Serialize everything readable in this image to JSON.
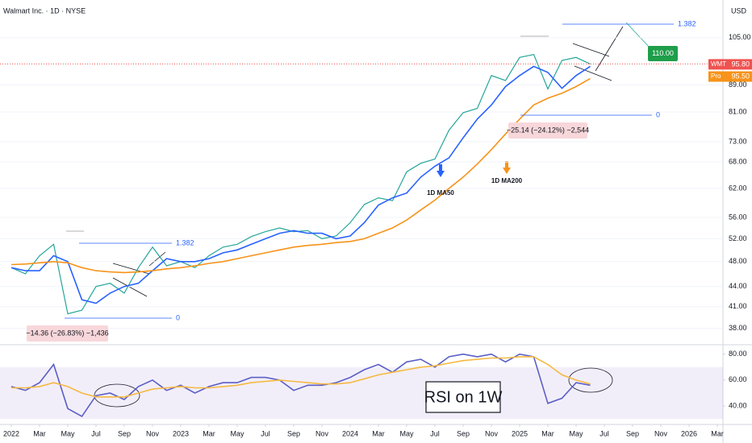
{
  "chart_data": [
    {
      "type": "line",
      "title": "Walmart Inc. · 1D · NYSE",
      "y_label": "USD",
      "log": true,
      "x": [
        0,
        1,
        2,
        3,
        4,
        5,
        6,
        7,
        8,
        9,
        10,
        11,
        12,
        13,
        14,
        15,
        16,
        17,
        18,
        19,
        20,
        21,
        22,
        23,
        24,
        25,
        26,
        27,
        28,
        29,
        30,
        31,
        32,
        33,
        34,
        35,
        36,
        37,
        38,
        39,
        40,
        41
      ],
      "xlim": [
        -0.8,
        50.4
      ],
      "ylim": [
        36.2,
        119.8
      ],
      "yticks": [
        {
          "value": 38,
          "label": "38.00"
        },
        {
          "value": 41,
          "label": "41.00"
        },
        {
          "value": 44,
          "label": "44.00"
        },
        {
          "value": 48,
          "label": "48.00"
        },
        {
          "value": 52,
          "label": "52.00"
        },
        {
          "value": 56,
          "label": "56.00"
        },
        {
          "value": 62,
          "label": "62.00"
        },
        {
          "value": 68,
          "label": "68.00"
        },
        {
          "value": 73,
          "label": "73.00"
        },
        {
          "value": 81,
          "label": "81.00"
        },
        {
          "value": 89,
          "label": "89.00"
        },
        {
          "value": 105,
          "label": "105.00"
        }
      ],
      "grid": true,
      "series": [
        {
          "color": "#26a69a",
          "values": [
            47,
            46,
            49,
            51,
            40,
            40.5,
            44,
            44.5,
            43,
            47,
            50.5,
            47.3,
            48,
            47,
            49,
            50.5,
            51,
            52.4,
            53.3,
            54,
            53.3,
            53.5,
            52,
            52.5,
            55,
            58.6,
            60,
            59.4,
            65.7,
            67.7,
            68.7,
            76,
            80.8,
            82,
            92,
            90.4,
            98,
            99,
            87.8,
            97,
            98,
            95.8
          ]
        },
        {
          "color": "#2962ff",
          "values": [
            47,
            46.5,
            46.5,
            49,
            48,
            42,
            41.5,
            43,
            44,
            44.5,
            46.5,
            48.5,
            48,
            48,
            48.5,
            49.5,
            50,
            51,
            52,
            53,
            53.5,
            53,
            53,
            52,
            52.5,
            55,
            58.5,
            60,
            61,
            64.5,
            67,
            69,
            74,
            79,
            83,
            88.5,
            92,
            95,
            93,
            88,
            92,
            95
          ]
        },
        {
          "color": "#f7931a",
          "values": [
            47.5,
            47.6,
            47.8,
            48,
            47.8,
            47,
            46.5,
            46.3,
            46.2,
            46.3,
            46.5,
            46.8,
            47,
            47.3,
            47.7,
            48,
            48.5,
            49,
            49.5,
            50,
            50.5,
            50.8,
            51,
            51.3,
            51.5,
            52,
            53,
            54,
            55.5,
            57.5,
            59.5,
            62,
            64.5,
            67.5,
            71,
            75,
            79,
            83,
            85,
            86.5,
            88.5,
            91
          ]
        }
      ],
      "last_price": {
        "symbol": "WMT",
        "value": 95.8,
        "label": "95.80",
        "color": "#ef5350"
      },
      "pro_price": {
        "symbol": "Pro",
        "value": 95.5,
        "label": "95.50",
        "color": "#f7931a"
      },
      "annotations": [
        "1.382",
        "0",
        "1.382",
        "0",
        "110.00",
        "−14.36 (−26.83%) −1,436",
        "−25.14 (−24.12%) −2,544",
        "1D MA50",
        "1D MA200"
      ]
    },
    {
      "type": "line",
      "x": [
        0,
        1,
        2,
        3,
        4,
        5,
        6,
        7,
        8,
        9,
        10,
        11,
        12,
        13,
        14,
        15,
        16,
        17,
        18,
        19,
        20,
        21,
        22,
        23,
        24,
        25,
        26,
        27,
        28,
        29,
        30,
        31,
        32,
        33,
        34,
        35,
        36,
        37,
        38,
        39,
        40,
        41
      ],
      "xlim": [
        -0.8,
        50.4
      ],
      "ylim": [
        27,
        86
      ],
      "band": [
        30,
        70
      ],
      "yticks": [
        {
          "value": 40,
          "label": "40.00"
        },
        {
          "value": 60,
          "label": "60.00"
        },
        {
          "value": 80,
          "label": "80.00"
        }
      ],
      "xticks": [
        {
          "value": 0,
          "label": "2022"
        },
        {
          "value": 2,
          "label": "Mar"
        },
        {
          "value": 4,
          "label": "May"
        },
        {
          "value": 6,
          "label": "Jul"
        },
        {
          "value": 8,
          "label": "Sep"
        },
        {
          "value": 10,
          "label": "Nov"
        },
        {
          "value": 12,
          "label": "2023"
        },
        {
          "value": 14,
          "label": "Mar"
        },
        {
          "value": 16,
          "label": "May"
        },
        {
          "value": 18,
          "label": "Jul"
        },
        {
          "value": 20,
          "label": "Sep"
        },
        {
          "value": 22,
          "label": "Nov"
        },
        {
          "value": 24,
          "label": "2024"
        },
        {
          "value": 26,
          "label": "Mar"
        },
        {
          "value": 28,
          "label": "May"
        },
        {
          "value": 30,
          "label": "Jul"
        },
        {
          "value": 32,
          "label": "Sep"
        },
        {
          "value": 34,
          "label": "Nov"
        },
        {
          "value": 36,
          "label": "2025"
        },
        {
          "value": 38,
          "label": "Mar"
        },
        {
          "value": 40,
          "label": "May"
        },
        {
          "value": 42,
          "label": "Jul"
        },
        {
          "value": 44,
          "label": "Sep"
        },
        {
          "value": 46,
          "label": "Nov"
        },
        {
          "value": 48,
          "label": "2026"
        },
        {
          "value": 50,
          "label": "Mar"
        }
      ],
      "series": [
        {
          "color": "#5b5fc7",
          "values": [
            55,
            52,
            58,
            72,
            38,
            32,
            48,
            50,
            45,
            55,
            60,
            52,
            56,
            50,
            55,
            58,
            58,
            62,
            62,
            60,
            52,
            56,
            56,
            58,
            62,
            68,
            72,
            66,
            74,
            76,
            70,
            78,
            80,
            78,
            80,
            74,
            80,
            78,
            42,
            46,
            58,
            56
          ]
        },
        {
          "color": "#f5b942",
          "values": [
            54,
            54,
            55,
            58,
            55,
            50,
            47,
            47,
            47,
            50,
            53,
            54,
            55,
            54,
            54,
            55,
            56,
            58,
            59,
            60,
            59,
            58,
            57,
            57,
            58,
            61,
            64,
            66,
            68,
            70,
            71,
            73,
            75,
            76,
            77,
            77,
            78,
            78,
            72,
            64,
            60,
            57
          ]
        }
      ],
      "annotations": [
        "RSI on 1W"
      ]
    }
  ]
}
